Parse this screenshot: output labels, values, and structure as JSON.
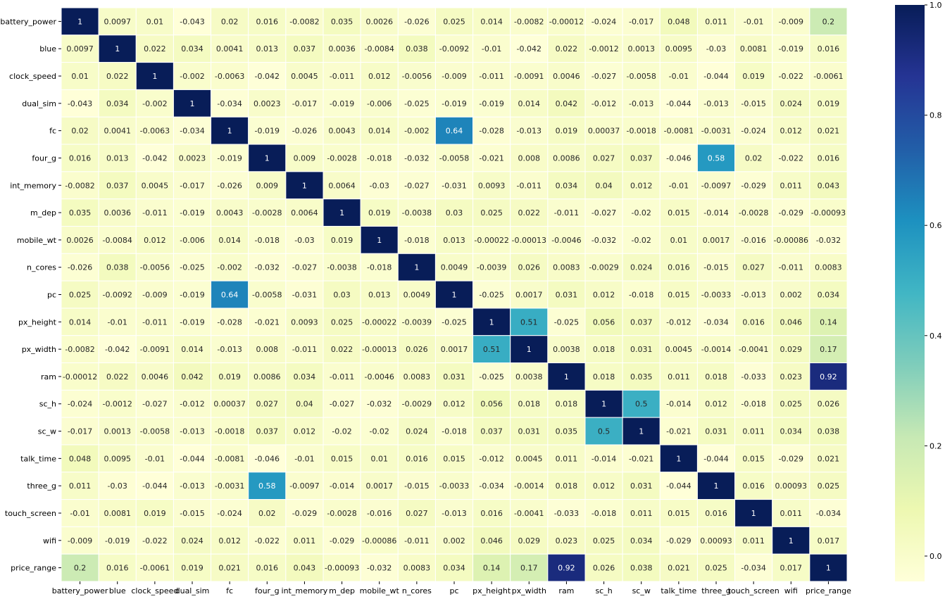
{
  "chart_data": {
    "type": "heatmap",
    "labels": [
      "battery_power",
      "blue",
      "clock_speed",
      "dual_sim",
      "fc",
      "four_g",
      "int_memory",
      "m_dep",
      "mobile_wt",
      "n_cores",
      "pc",
      "px_height",
      "px_width",
      "ram",
      "sc_h",
      "sc_w",
      "talk_time",
      "three_g",
      "touch_screen",
      "wifi",
      "price_range"
    ],
    "matrix": [
      [
        1,
        0.0097,
        0.01,
        -0.043,
        0.02,
        0.016,
        -0.0082,
        0.035,
        0.0026,
        -0.026,
        0.025,
        0.014,
        -0.0082,
        -0.00012,
        -0.024,
        -0.017,
        0.048,
        0.011,
        -0.01,
        -0.009,
        0.2
      ],
      [
        0.0097,
        1,
        0.022,
        0.034,
        0.0041,
        0.013,
        0.037,
        0.0036,
        -0.0084,
        0.038,
        -0.0092,
        -0.01,
        -0.042,
        0.022,
        -0.0012,
        0.0013,
        0.0095,
        -0.03,
        0.0081,
        -0.019,
        0.016
      ],
      [
        0.01,
        0.022,
        1,
        -0.002,
        -0.0063,
        -0.042,
        0.0045,
        -0.011,
        0.012,
        -0.0056,
        -0.009,
        -0.011,
        -0.0091,
        0.0046,
        -0.027,
        -0.0058,
        -0.01,
        -0.044,
        0.019,
        -0.022,
        -0.0061
      ],
      [
        -0.043,
        0.034,
        -0.002,
        1,
        -0.034,
        0.0023,
        -0.017,
        -0.019,
        -0.006,
        -0.025,
        -0.019,
        -0.019,
        0.014,
        0.042,
        -0.012,
        -0.013,
        -0.044,
        -0.013,
        -0.015,
        0.024,
        0.019
      ],
      [
        0.02,
        0.0041,
        -0.0063,
        -0.034,
        1,
        -0.019,
        -0.026,
        0.0043,
        0.014,
        -0.002,
        0.64,
        -0.028,
        -0.013,
        0.019,
        0.00037,
        -0.0018,
        -0.0081,
        -0.0031,
        -0.024,
        0.012,
        0.021
      ],
      [
        0.016,
        0.013,
        -0.042,
        0.0023,
        -0.019,
        1,
        0.009,
        -0.0028,
        -0.018,
        -0.032,
        -0.0058,
        -0.021,
        0.008,
        0.0086,
        0.027,
        0.037,
        -0.046,
        0.58,
        0.02,
        -0.022,
        0.016
      ],
      [
        -0.0082,
        0.037,
        0.0045,
        -0.017,
        -0.026,
        0.009,
        1,
        0.0064,
        -0.03,
        -0.027,
        -0.031,
        0.0093,
        -0.011,
        0.034,
        0.04,
        0.012,
        -0.01,
        -0.0097,
        -0.029,
        0.011,
        0.043
      ],
      [
        0.035,
        0.0036,
        -0.011,
        -0.019,
        0.0043,
        -0.0028,
        0.0064,
        1,
        0.019,
        -0.0038,
        0.03,
        0.025,
        0.022,
        -0.011,
        -0.027,
        -0.02,
        0.015,
        -0.014,
        -0.0028,
        -0.029,
        -0.00093
      ],
      [
        0.0026,
        -0.0084,
        0.012,
        -0.006,
        0.014,
        -0.018,
        -0.03,
        0.019,
        1,
        -0.018,
        0.013,
        -0.00022,
        -0.00013,
        -0.0046,
        -0.032,
        -0.02,
        0.01,
        0.0017,
        -0.016,
        -0.00086,
        -0.032
      ],
      [
        -0.026,
        0.038,
        -0.0056,
        -0.025,
        -0.002,
        -0.032,
        -0.027,
        -0.0038,
        -0.018,
        1,
        0.0049,
        -0.0039,
        0.026,
        0.0083,
        -0.0029,
        0.024,
        0.016,
        -0.015,
        0.027,
        -0.011,
        0.0083
      ],
      [
        0.025,
        -0.0092,
        -0.009,
        -0.019,
        0.64,
        -0.0058,
        -0.031,
        0.03,
        0.013,
        0.0049,
        1,
        -0.025,
        0.0017,
        0.031,
        0.012,
        -0.018,
        0.015,
        -0.0033,
        -0.013,
        0.002,
        0.034
      ],
      [
        0.014,
        -0.01,
        -0.011,
        -0.019,
        -0.028,
        -0.021,
        0.0093,
        0.025,
        -0.00022,
        -0.0039,
        -0.025,
        1,
        0.51,
        -0.025,
        0.056,
        0.037,
        -0.012,
        -0.034,
        0.016,
        0.046,
        0.14
      ],
      [
        -0.0082,
        -0.042,
        -0.0091,
        0.014,
        -0.013,
        0.008,
        -0.011,
        0.022,
        -0.00013,
        0.026,
        0.0017,
        0.51,
        1,
        0.0038,
        0.018,
        0.031,
        0.0045,
        -0.0014,
        -0.0041,
        0.029,
        0.17
      ],
      [
        -0.00012,
        0.022,
        0.0046,
        0.042,
        0.019,
        0.0086,
        0.034,
        -0.011,
        -0.0046,
        0.0083,
        0.031,
        -0.025,
        0.0038,
        1,
        0.018,
        0.035,
        0.011,
        0.018,
        -0.033,
        0.023,
        0.92
      ],
      [
        -0.024,
        -0.0012,
        -0.027,
        -0.012,
        0.00037,
        0.027,
        0.04,
        -0.027,
        -0.032,
        -0.0029,
        0.012,
        0.056,
        0.018,
        0.018,
        1,
        0.5,
        -0.014,
        0.012,
        -0.018,
        0.025,
        0.026
      ],
      [
        -0.017,
        0.0013,
        -0.0058,
        -0.013,
        -0.0018,
        0.037,
        0.012,
        -0.02,
        -0.02,
        0.024,
        -0.018,
        0.037,
        0.031,
        0.035,
        0.5,
        1,
        -0.021,
        0.031,
        0.011,
        0.034,
        0.038
      ],
      [
        0.048,
        0.0095,
        -0.01,
        -0.044,
        -0.0081,
        -0.046,
        -0.01,
        0.015,
        0.01,
        0.016,
        0.015,
        -0.012,
        0.0045,
        0.011,
        -0.014,
        -0.021,
        1,
        -0.044,
        0.015,
        -0.029,
        0.021
      ],
      [
        0.011,
        -0.03,
        -0.044,
        -0.013,
        -0.0031,
        0.58,
        -0.0097,
        -0.014,
        0.0017,
        -0.015,
        -0.0033,
        -0.034,
        -0.0014,
        0.018,
        0.012,
        0.031,
        -0.044,
        1,
        0.016,
        0.00093,
        0.025
      ],
      [
        -0.01,
        0.0081,
        0.019,
        -0.015,
        -0.024,
        0.02,
        -0.029,
        -0.0028,
        -0.016,
        0.027,
        -0.013,
        0.016,
        -0.0041,
        -0.033,
        -0.018,
        0.011,
        0.015,
        0.016,
        1,
        0.011,
        -0.034
      ],
      [
        -0.009,
        -0.019,
        -0.022,
        0.024,
        0.012,
        -0.022,
        0.011,
        -0.029,
        -0.00086,
        -0.011,
        0.002,
        0.046,
        0.029,
        0.023,
        0.025,
        0.034,
        -0.029,
        0.00093,
        0.011,
        1,
        0.017
      ],
      [
        0.2,
        0.016,
        -0.0061,
        0.019,
        0.021,
        0.016,
        0.043,
        -0.00093,
        -0.032,
        0.0083,
        0.034,
        0.14,
        0.17,
        0.92,
        0.026,
        0.038,
        0.021,
        0.025,
        -0.034,
        0.017,
        1
      ]
    ],
    "colormap": "YlGnBu",
    "vmin": -0.046,
    "vmax": 1.0,
    "colorbar_ticks": [
      "0.0",
      "0.2",
      "0.4",
      "0.6",
      "0.8",
      "1.0"
    ],
    "title": "",
    "xlabel": "",
    "ylabel": ""
  }
}
